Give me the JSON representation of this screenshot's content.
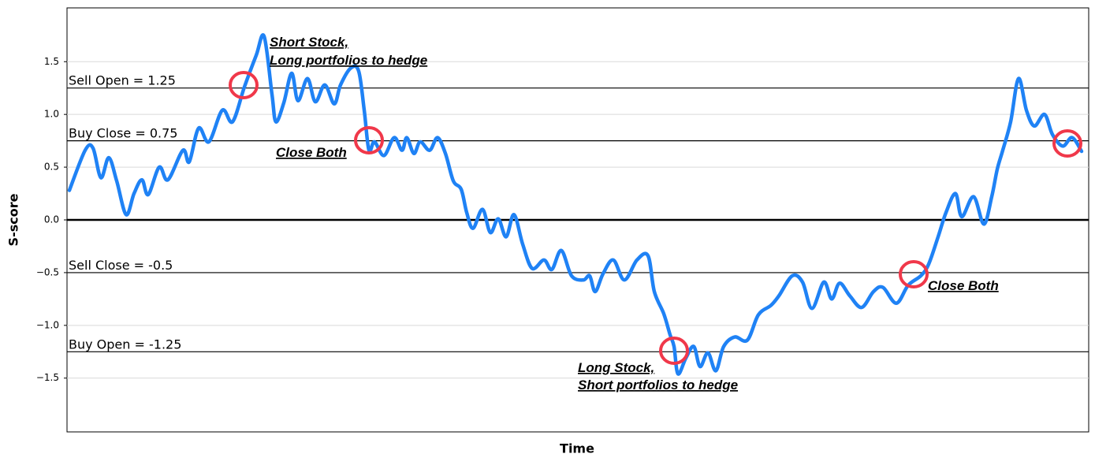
{
  "chart_data": {
    "type": "line",
    "xlabel": "Time",
    "ylabel": "S-score",
    "x": [
      3,
      23,
      33,
      43,
      53,
      63,
      75,
      85,
      95,
      103,
      117,
      128,
      147,
      155,
      167,
      180,
      197,
      210,
      225,
      240,
      250,
      260,
      265,
      275,
      285,
      293,
      305,
      315,
      327,
      339,
      347,
      360,
      370,
      377,
      383,
      390,
      402,
      415,
      425,
      431,
      440,
      448,
      460,
      470,
      480,
      490,
      500,
      507,
      515,
      527,
      537,
      547,
      557,
      567,
      578,
      590,
      605,
      615,
      627,
      640,
      655,
      663,
      670,
      680,
      693,
      707,
      723,
      737,
      745,
      757,
      765,
      770,
      775,
      785,
      795,
      803,
      813,
      823,
      833,
      847,
      863,
      877,
      893,
      903,
      920,
      933,
      945,
      960,
      970,
      980,
      993,
      1008,
      1023,
      1035,
      1052,
      1067,
      1083,
      1093,
      1105,
      1115,
      1127,
      1135,
      1150,
      1163,
      1173,
      1180,
      1187,
      1197,
      1207,
      1217,
      1227,
      1240,
      1250,
      1263,
      1275,
      1287
    ],
    "values": [
      0.28,
      0.66,
      0.68,
      0.4,
      0.59,
      0.37,
      0.05,
      0.25,
      0.38,
      0.24,
      0.5,
      0.38,
      0.66,
      0.55,
      0.87,
      0.74,
      1.04,
      0.93,
      1.26,
      1.56,
      1.74,
      1.19,
      0.93,
      1.11,
      1.39,
      1.13,
      1.34,
      1.12,
      1.28,
      1.1,
      1.28,
      1.44,
      1.41,
      1.04,
      0.66,
      0.74,
      0.61,
      0.78,
      0.66,
      0.78,
      0.63,
      0.74,
      0.66,
      0.78,
      0.63,
      0.37,
      0.29,
      0.07,
      -0.08,
      0.1,
      -0.12,
      0.01,
      -0.16,
      0.05,
      -0.23,
      -0.46,
      -0.38,
      -0.47,
      -0.29,
      -0.53,
      -0.57,
      -0.53,
      -0.68,
      -0.51,
      -0.38,
      -0.57,
      -0.38,
      -0.34,
      -0.68,
      -0.89,
      -1.09,
      -1.2,
      -1.46,
      -1.31,
      -1.2,
      -1.39,
      -1.26,
      -1.43,
      -1.2,
      -1.11,
      -1.14,
      -0.9,
      -0.81,
      -0.72,
      -0.53,
      -0.59,
      -0.84,
      -0.59,
      -0.75,
      -0.6,
      -0.72,
      -0.83,
      -0.68,
      -0.64,
      -0.79,
      -0.62,
      -0.53,
      -0.42,
      -0.16,
      0.07,
      0.25,
      0.03,
      0.22,
      -0.04,
      0.22,
      0.48,
      0.66,
      0.93,
      1.34,
      1.04,
      0.89,
      1.0,
      0.81,
      0.7,
      0.78,
      0.65
    ],
    "color": "#1f82f5",
    "xlim": [
      0,
      1296
    ],
    "ylim": [
      -2.01,
      2.01
    ],
    "yticks": [
      {
        "value": -1.5,
        "label": "−1.5"
      },
      {
        "value": -1.0,
        "label": "−1.0"
      },
      {
        "value": -0.5,
        "label": "−0.5"
      },
      {
        "value": 0.0,
        "label": "0.0"
      },
      {
        "value": 0.5,
        "label": "0.5"
      },
      {
        "value": 1.0,
        "label": "1.0"
      },
      {
        "value": 1.5,
        "label": "1.5"
      }
    ],
    "grid": true,
    "zero_line": true,
    "thresholds": [
      {
        "label": "Sell Open = 1.25",
        "value": 1.25
      },
      {
        "label": "Buy Close = 0.75",
        "value": 0.75
      },
      {
        "label": "Sell Close = -0.5",
        "value": -0.5
      },
      {
        "label": "Buy Open = -1.25",
        "value": -1.25
      }
    ],
    "annotations": [
      "Short Stock,",
      "Long portfolios to hedge",
      "Close Both",
      "Long Stock,",
      "Short portfolios to hedge",
      "Close Both"
    ]
  }
}
